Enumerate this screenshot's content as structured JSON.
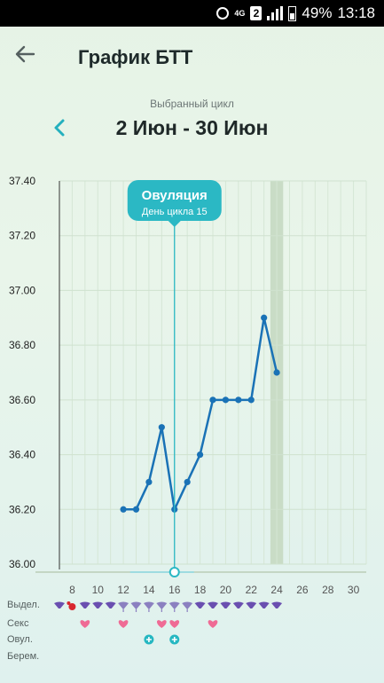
{
  "status_bar": {
    "network": "4G",
    "sim": "2",
    "battery": "49%",
    "time": "13:18"
  },
  "header": {
    "title": "График БТТ",
    "back_icon": "arrow-left-icon"
  },
  "cycle": {
    "label": "Выбранный цикл",
    "range": "2 Июн - 30 Июн",
    "prev_icon": "chevron-left-icon"
  },
  "legend_rows": {
    "discharge": "Выдел.",
    "sex": "Секс",
    "ovulation": "Овул.",
    "pregnancy": "Берем."
  },
  "chart_data": {
    "type": "line",
    "ylim": [
      36.0,
      37.4
    ],
    "y_ticks": [
      "37.40",
      "37.20",
      "37.00",
      "36.80",
      "36.60",
      "36.40",
      "36.20",
      "36.00"
    ],
    "x_ticks": [
      "8",
      "10",
      "12",
      "14",
      "16",
      "18",
      "20",
      "22",
      "24",
      "26",
      "28",
      "30"
    ],
    "x_range": [
      7,
      31
    ],
    "series": [
      {
        "x": [
          12,
          13,
          14,
          15,
          16,
          17,
          18,
          19,
          20,
          21,
          22,
          23,
          24
        ],
        "y": [
          36.2,
          36.2,
          36.3,
          36.5,
          36.2,
          36.3,
          36.4,
          36.6,
          36.6,
          36.6,
          36.6,
          36.9,
          36.7
        ]
      }
    ],
    "highlight_day": 24,
    "ovulation": {
      "day": 16,
      "title": "Овуляция",
      "subtitle": "День цикла 15"
    },
    "line_color": "#1a72b6",
    "ovulation_color": "#2bb8c4"
  },
  "markers": {
    "discharge_days": [
      7,
      8,
      9,
      10,
      11,
      12,
      13,
      14,
      15,
      16,
      17,
      18,
      19,
      20,
      21,
      22,
      23,
      24
    ],
    "spotting_day": 8,
    "sex_days": [
      9,
      12,
      15,
      16,
      19
    ],
    "ovulation_days": [
      14,
      16
    ]
  }
}
